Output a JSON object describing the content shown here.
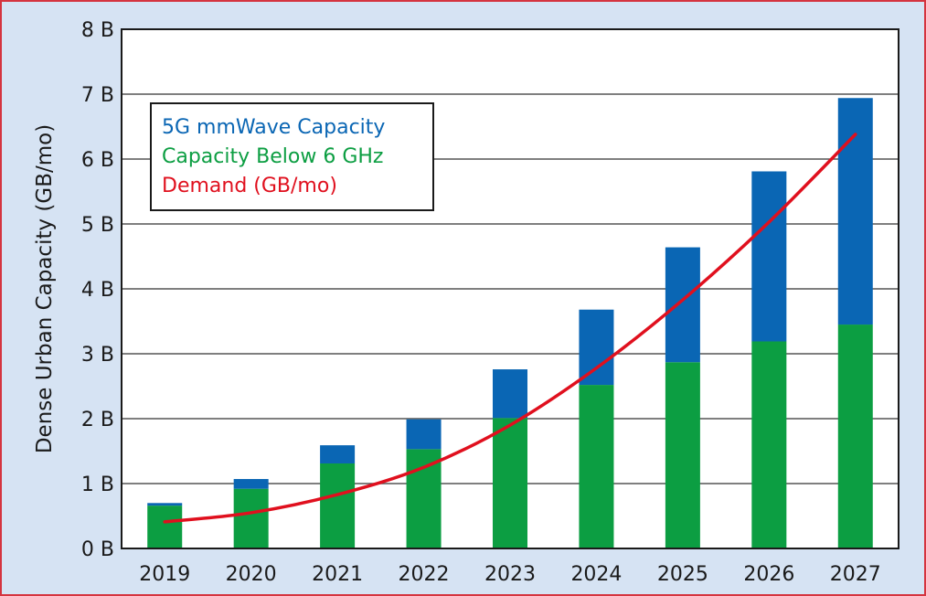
{
  "chart_data": {
    "type": "bar",
    "stacked": true,
    "categories": [
      "2019",
      "2020",
      "2021",
      "2022",
      "2023",
      "2024",
      "2025",
      "2026",
      "2027"
    ],
    "series": [
      {
        "name": "Capacity Below 6 GHz",
        "type": "bar",
        "color": "#0c9e42",
        "values": [
          0.66,
          0.92,
          1.31,
          1.53,
          2.01,
          2.52,
          2.87,
          3.19,
          3.45
        ]
      },
      {
        "name": "5G mmWave Capacity",
        "type": "bar",
        "color": "#0a66b4",
        "values": [
          0.04,
          0.15,
          0.28,
          0.46,
          0.75,
          1.16,
          1.77,
          2.62,
          3.49
        ]
      },
      {
        "name": "Demand (GB/mo)",
        "type": "line",
        "color": "#e0101e",
        "values": [
          0.41,
          0.55,
          0.83,
          1.25,
          1.9,
          2.78,
          3.83,
          5.03,
          6.38
        ]
      }
    ],
    "legend": {
      "position": "top-left",
      "entries": [
        {
          "label": "5G mmWave Capacity",
          "color": "#0a66b4"
        },
        {
          "label": "Capacity Below 6 GHz",
          "color": "#0c9e42"
        },
        {
          "label": "Demand (GB/mo)",
          "color": "#e0101e"
        }
      ]
    },
    "ylabel": "Dense Urban Capacity (GB/mo)",
    "xlabel": "",
    "ylim": [
      0,
      8
    ],
    "yticks": [
      0,
      1,
      2,
      3,
      4,
      5,
      6,
      7,
      8
    ],
    "ytick_labels": [
      "0 B",
      "1 B",
      "2 B",
      "3 B",
      "4 B",
      "5 B",
      "6 B",
      "7 B",
      "8 B"
    ],
    "grid": "horizontal"
  }
}
